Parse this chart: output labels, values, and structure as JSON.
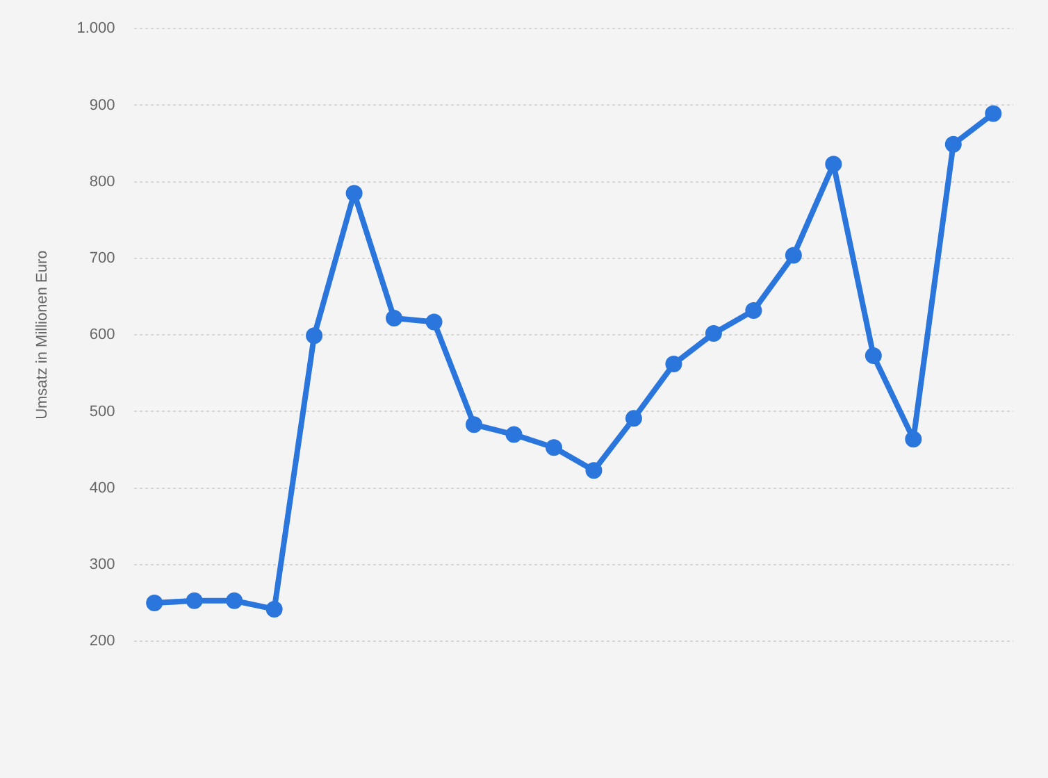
{
  "chart_data": {
    "type": "line",
    "ylabel": "Umsatz in Millionen Euro",
    "categories": [
      null,
      null,
      null,
      null,
      null,
      null,
      null,
      null,
      null,
      null,
      null,
      null,
      null,
      null,
      null,
      null,
      null,
      null,
      null,
      null,
      null,
      null
    ],
    "series": [
      {
        "color": "#2a76dd",
        "values": [
          250,
          253,
          253,
          242,
          599,
          785,
          622,
          617,
          483,
          470,
          453,
          423,
          491,
          562,
          602,
          632,
          704,
          823,
          573,
          464,
          849,
          889
        ]
      }
    ],
    "ylim": [
      200,
      1000
    ],
    "yticks": [
      200,
      300,
      400,
      500,
      600,
      700,
      800,
      900,
      {
        "value": 1000,
        "label": "1.000"
      }
    ],
    "grid": "y",
    "marker": "circle",
    "line_style": "solid",
    "legend": false
  }
}
